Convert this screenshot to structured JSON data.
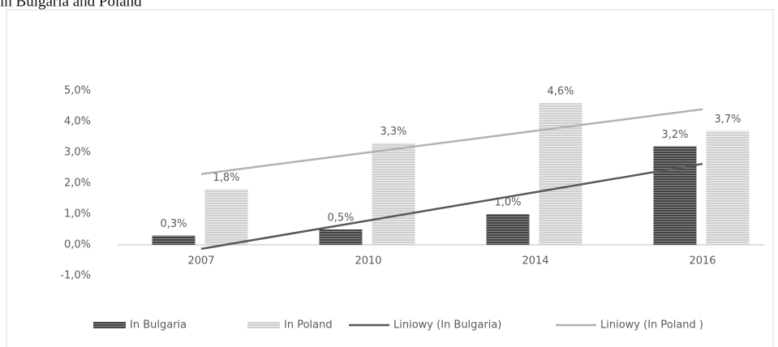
{
  "chart_data": {
    "type": "bar",
    "title": "in Bulgaria and Poland",
    "categories": [
      "2007",
      "2010",
      "2014",
      "2016"
    ],
    "series": [
      {
        "name": "In Bulgaria",
        "color": "#555555",
        "values": [
          0.3,
          0.5,
          1.0,
          3.2
        ],
        "value_labels": [
          "0,3%",
          "0,5%",
          "1,0%",
          "3,2%"
        ]
      },
      {
        "name": "In Poland",
        "color": "#c4c4c4",
        "values": [
          1.8,
          3.3,
          4.6,
          3.7
        ],
        "value_labels": [
          "1,8%",
          "3,3%",
          "4,6%",
          "3,7%"
        ]
      },
      {
        "name": "Liniowy (In Bulgaria)",
        "type": "line",
        "color": "#595959",
        "values": [
          -0.13,
          0.79,
          1.71,
          2.63
        ]
      },
      {
        "name": "Liniowy (In Poland )",
        "type": "line",
        "color": "#b2b2b2",
        "values": [
          2.3,
          3.0,
          3.7,
          4.4
        ]
      }
    ],
    "ylim": [
      -1,
      5
    ],
    "yticks": [
      {
        "value": -1,
        "label": "-1,0%"
      },
      {
        "value": 0,
        "label": "0,0%"
      },
      {
        "value": 1,
        "label": "1,0%"
      },
      {
        "value": 2,
        "label": "2,0%"
      },
      {
        "value": 3,
        "label": "3,0%"
      },
      {
        "value": 4,
        "label": "4,0%"
      },
      {
        "value": 5,
        "label": "5,0%"
      }
    ],
    "legend": "bottom"
  }
}
